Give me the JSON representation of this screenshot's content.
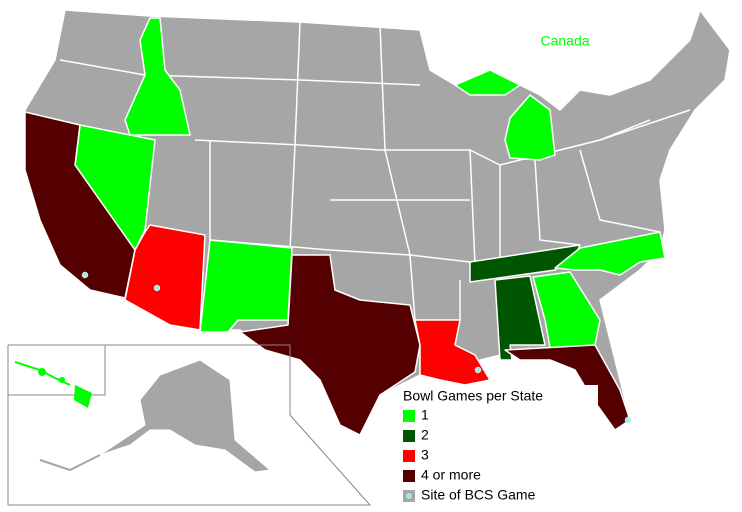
{
  "map": {
    "label": "Canada",
    "legend": {
      "title": "Bowl Games per State",
      "items": [
        {
          "label": "1",
          "color": "#00ff00"
        },
        {
          "label": "2",
          "color": "#005500"
        },
        {
          "label": "3",
          "color": "#ff0000"
        },
        {
          "label": "4 or more",
          "color": "#550000"
        },
        {
          "label": "Site of BCS Game",
          "color": "#a6a6a6"
        }
      ]
    }
  }
}
